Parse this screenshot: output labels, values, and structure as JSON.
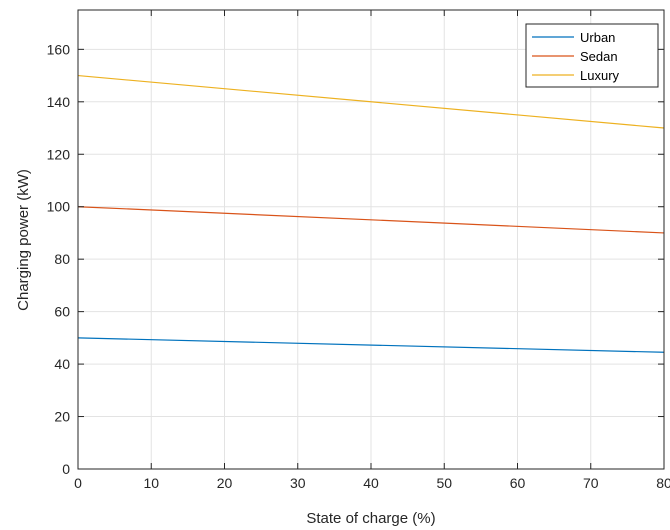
{
  "chart_data": {
    "type": "line",
    "xlabel": "State of charge (%)",
    "ylabel": "Charging power (kW)",
    "xlim": [
      0,
      80
    ],
    "ylim": [
      0,
      175
    ],
    "xticks": [
      0,
      10,
      20,
      30,
      40,
      50,
      60,
      70,
      80
    ],
    "yticks": [
      0,
      20,
      40,
      60,
      80,
      100,
      120,
      140,
      160
    ],
    "grid": true,
    "legend_position": "top-right",
    "x": [
      0,
      80
    ],
    "series": [
      {
        "name": "Urban",
        "color": "#0072BD",
        "values": [
          50,
          44.5
        ]
      },
      {
        "name": "Sedan",
        "color": "#D95319",
        "values": [
          100,
          90
        ]
      },
      {
        "name": "Luxury",
        "color": "#EDB120",
        "values": [
          150,
          130
        ]
      }
    ]
  }
}
